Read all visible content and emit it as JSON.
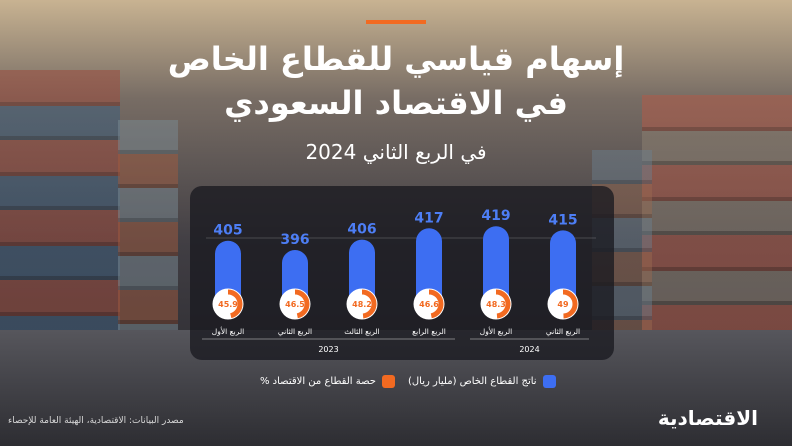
{
  "header": {
    "title_line1": "إسهام قياسي للقطاع الخاص",
    "title_line2": "في الاقتصاد السعودي",
    "subtitle": "في الربع الثاني 2024"
  },
  "legend": {
    "gdp_label": "ناتج القطاع الخاص (مليار ريال)",
    "share_label": "حصة القطاع من الاقتصاد %"
  },
  "footer": {
    "source": "مصدر البيانات: الاقتصادية، الهيئة العامة للإحصاء",
    "brand": "الاقتصادية"
  },
  "colors": {
    "accent": "#f26a21",
    "bar": "#3d6ef2",
    "bar_label": "#4d7ef5",
    "donut_fill": "#f26a21",
    "donut_track": "#ffffff"
  },
  "chart_data": {
    "type": "bar",
    "categories": [
      "الربع الأول",
      "الربع الثاني",
      "الربع الثالث",
      "الربع الرابع",
      "الربع الأول",
      "الربع الثاني"
    ],
    "years": [
      {
        "label": "2023",
        "quarters": 4
      },
      {
        "label": "2024",
        "quarters": 2
      }
    ],
    "series": [
      {
        "name": "ناتج القطاع الخاص (مليار ريال)",
        "values": [
          405,
          396,
          406,
          417,
          419,
          415
        ]
      },
      {
        "name": "حصة القطاع من الاقتصاد %",
        "values": [
          45.9,
          46.5,
          48.2,
          46.6,
          48.3,
          49
        ]
      }
    ]
  }
}
